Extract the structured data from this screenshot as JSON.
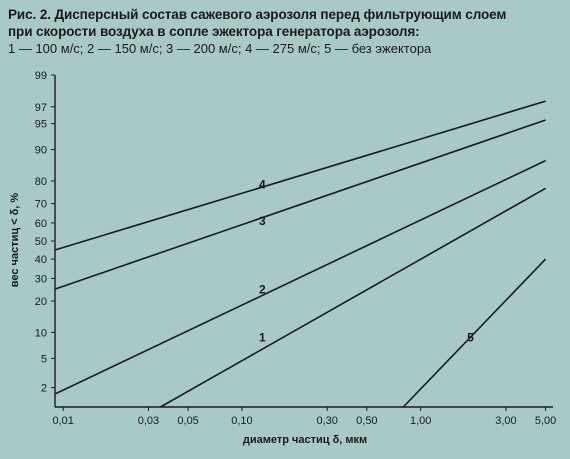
{
  "caption": {
    "line1": "Рис. 2. Дисперсный состав сажевого аэрозоля перед фильтрующим слоем",
    "line2": "при скорости воздуха в сопле эжектора генератора аэрозоля:",
    "line3": "1 — 100 м/с; 2 — 150 м/с; 3 — 200 м/с; 4 — 275 м/с; 5 — без эжектора"
  },
  "chart_data": {
    "type": "line",
    "title": "Рис. 2. Дисперсный состав сажевого аэрозоля перед фильтрующим слоем при скорости воздуха в сопле эжектора генератора аэрозоля",
    "xlabel": "диаметр частиц δ, мкм",
    "ylabel": "вес частиц < δ, %",
    "x_scale": "log",
    "y_scale": "probability",
    "xlim": [
      0.009,
      5.5
    ],
    "ylim": [
      1,
      99
    ],
    "x_ticks": [
      "0,01",
      "0,03",
      "0,05",
      "0,10",
      "0,30",
      "0,50",
      "1,00",
      "3,00",
      "5,00"
    ],
    "x_tick_values": [
      0.01,
      0.03,
      0.05,
      0.1,
      0.3,
      0.5,
      1.0,
      3.0,
      5.0
    ],
    "y_ticks": [
      "2",
      "5",
      "10",
      "20",
      "30",
      "40",
      "50",
      "60",
      "70",
      "80",
      "90",
      "95",
      "97",
      "99"
    ],
    "y_tick_values": [
      2,
      5,
      10,
      20,
      30,
      40,
      50,
      60,
      70,
      80,
      90,
      95,
      97,
      99
    ],
    "grid": false,
    "series": [
      {
        "name": "1",
        "x": [
          0.035,
          5.0
        ],
        "y": [
          1.0,
          77.0
        ],
        "label_at": [
          0.13,
          8.0
        ]
      },
      {
        "name": "2",
        "x": [
          0.009,
          5.0
        ],
        "y": [
          1.6,
          87.0
        ],
        "label_at": [
          0.13,
          23.0
        ]
      },
      {
        "name": "3",
        "x": [
          0.009,
          5.0
        ],
        "y": [
          25.0,
          95.5
        ],
        "label_at": [
          0.13,
          59.0
        ]
      },
      {
        "name": "4",
        "x": [
          0.009,
          5.0
        ],
        "y": [
          45.0,
          97.5
        ],
        "label_at": [
          0.13,
          77.0
        ]
      },
      {
        "name": "5",
        "x": [
          0.8,
          5.0
        ],
        "y": [
          1.0,
          40.0
        ],
        "label_at": [
          1.9,
          8.0
        ]
      }
    ],
    "line_color": "#1a1a1a"
  }
}
